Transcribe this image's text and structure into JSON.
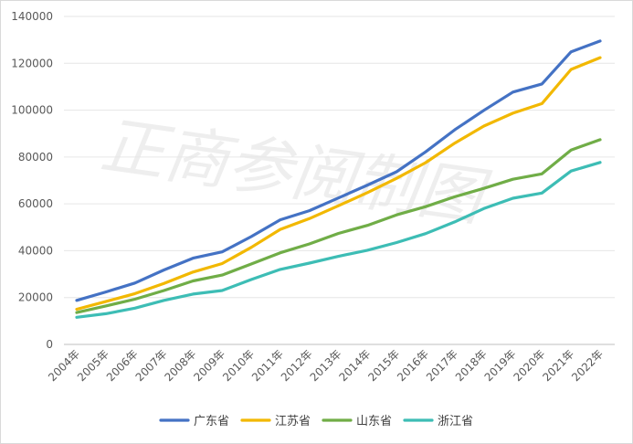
{
  "chart_data": {
    "type": "line",
    "title": "",
    "xlabel": "",
    "ylabel": "",
    "x": [
      "2004年",
      "2005年",
      "2006年",
      "2007年",
      "2008年",
      "2009年",
      "2010年",
      "2011年",
      "2012年",
      "2013年",
      "2014年",
      "2015年",
      "2016年",
      "2017年",
      "2018年",
      "2019年",
      "2020年",
      "2021年",
      "2022年"
    ],
    "ylim": [
      0,
      140000
    ],
    "yticks": [
      0,
      20000,
      40000,
      60000,
      80000,
      100000,
      120000,
      140000
    ],
    "ytick_labels": [
      "0",
      "20000",
      "40000",
      "60000",
      "80000",
      "100000",
      "120000",
      "140000"
    ],
    "grid": "horizontal",
    "legend_position": "bottom",
    "watermark": "正商参阅制图",
    "series": [
      {
        "name": "广东省",
        "color": "#4472C4",
        "values": [
          18800,
          22400,
          26200,
          31800,
          36800,
          39500,
          46000,
          53200,
          57100,
          62500,
          68000,
          73700,
          82200,
          91600,
          99900,
          107700,
          111200,
          124900,
          129500
        ]
      },
      {
        "name": "江苏省",
        "color": "#F2B800",
        "values": [
          15000,
          18300,
          21700,
          26000,
          30900,
          34500,
          41400,
          49100,
          53700,
          59200,
          64800,
          70900,
          77600,
          85900,
          93200,
          98700,
          102800,
          117400,
          122400
        ]
      },
      {
        "name": "山东省",
        "color": "#70AD47",
        "values": [
          13600,
          16400,
          19300,
          23000,
          27100,
          29600,
          34300,
          39100,
          42900,
          47400,
          50800,
          55300,
          58800,
          63000,
          66600,
          70500,
          72800,
          83000,
          87400
        ]
      },
      {
        "name": "浙江省",
        "color": "#3DBDB5",
        "values": [
          11600,
          13100,
          15500,
          18800,
          21500,
          23000,
          27700,
          32000,
          34700,
          37600,
          40200,
          43500,
          47300,
          52300,
          58000,
          62400,
          64600,
          74000,
          77700
        ]
      }
    ]
  }
}
